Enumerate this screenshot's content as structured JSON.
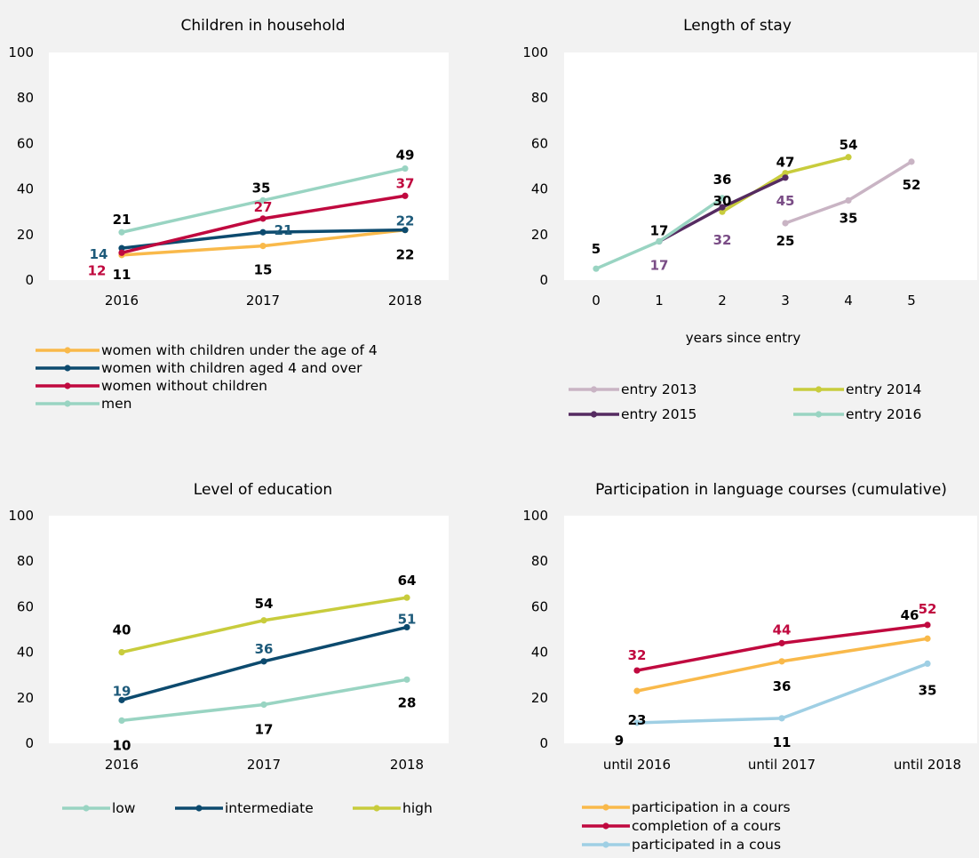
{
  "chart_data": [
    {
      "type": "line",
      "title": "Children in household",
      "categories": [
        "2016",
        "2017",
        "2018"
      ],
      "ylim": [
        0,
        100
      ],
      "yticks": [
        0,
        20,
        40,
        60,
        80,
        100
      ],
      "xlabel": "",
      "ylabel": "",
      "grid": false,
      "legend_placement": "bottom",
      "series": [
        {
          "name": "women with children under the age of 4",
          "color": "#f9b94a",
          "values": [
            11,
            15,
            22
          ],
          "label_color": "#000000"
        },
        {
          "name": "women with children aged 4 and over",
          "color": "#0c4a6e",
          "values": [
            14,
            21,
            22
          ],
          "label_color": "#1d5a7a"
        },
        {
          "name": "women without children",
          "color": "#c0093f",
          "values": [
            12,
            27,
            37
          ],
          "label_color": "#c0093f"
        },
        {
          "name": "men",
          "color": "#99d4c2",
          "values": [
            21,
            35,
            49
          ],
          "label_color": "#000000"
        }
      ]
    },
    {
      "type": "line",
      "title": "Length of stay",
      "categories": [
        "0",
        "1",
        "2",
        "3",
        "4",
        "5"
      ],
      "ylim": [
        0,
        100
      ],
      "yticks": [
        0,
        20,
        40,
        60,
        80,
        100
      ],
      "xlabel": "years since entry",
      "ylabel": "",
      "grid": false,
      "legend_placement": "bottom",
      "series": [
        {
          "name": "entry 2013",
          "color": "#c9b4c4",
          "x": [
            3,
            4,
            5
          ],
          "values": [
            25,
            35,
            52
          ],
          "label_color": "#000000"
        },
        {
          "name": "entry 2014",
          "color": "#c8cc3c",
          "x": [
            2,
            3,
            4
          ],
          "values": [
            30,
            47,
            54
          ],
          "label_color": "#000000"
        },
        {
          "name": "entry 2015",
          "color": "#552b61",
          "x": [
            1,
            2,
            3
          ],
          "values": [
            17,
            32,
            45
          ],
          "label_color": "#7a4d86"
        },
        {
          "name": "entry 2016",
          "color": "#99d4c2",
          "x": [
            0,
            1,
            2
          ],
          "values": [
            5,
            17,
            36
          ],
          "label_color": "#000000"
        }
      ]
    },
    {
      "type": "line",
      "title": "Level of education",
      "categories": [
        "2016",
        "2017",
        "2018"
      ],
      "ylim": [
        0,
        100
      ],
      "yticks": [
        0,
        20,
        40,
        60,
        80,
        100
      ],
      "xlabel": "",
      "ylabel": "",
      "grid": false,
      "legend_placement": "bottom",
      "series": [
        {
          "name": "low",
          "color": "#99d4c2",
          "values": [
            10,
            17,
            28
          ],
          "label_color": "#000000"
        },
        {
          "name": "intermediate",
          "color": "#0c4a6e",
          "values": [
            19,
            36,
            51
          ],
          "label_color": "#1d5a7a"
        },
        {
          "name": "high",
          "color": "#c8cc3c",
          "values": [
            40,
            54,
            64
          ],
          "label_color": "#000000"
        }
      ]
    },
    {
      "type": "line",
      "title": "Participation in language courses (cumulative)",
      "categories": [
        "until 2016",
        "until 2017",
        "until 2018"
      ],
      "ylim": [
        0,
        100
      ],
      "yticks": [
        0,
        20,
        40,
        60,
        80,
        100
      ],
      "xlabel": "",
      "ylabel": "",
      "grid": false,
      "legend_placement": "bottom",
      "series": [
        {
          "name": "participation in a cours",
          "color": "#f9b94a",
          "values": [
            23,
            36,
            46
          ],
          "label_color": "#000000"
        },
        {
          "name": "completion of a cours",
          "color": "#c0093f",
          "values": [
            32,
            44,
            52
          ],
          "label_color": "#c0093f"
        },
        {
          "name": "participated in a cous",
          "color": "#9fcfe4",
          "values": [
            9,
            11,
            35
          ],
          "label_color": "#000000"
        }
      ]
    }
  ]
}
